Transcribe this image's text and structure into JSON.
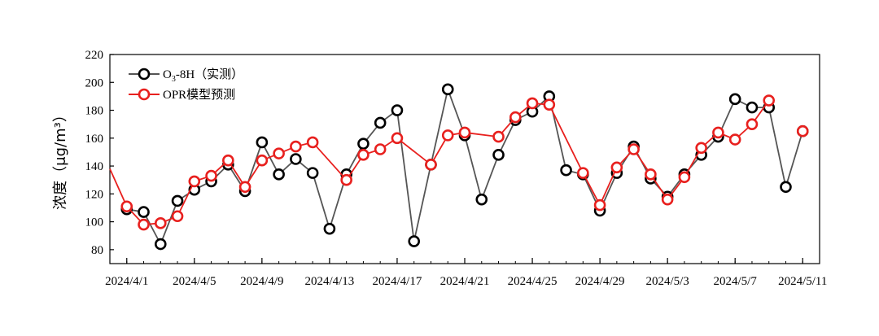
{
  "chart_data": {
    "type": "line",
    "ylabel": "浓度（μg/m³）",
    "xlabel": "",
    "ylim": [
      70,
      220
    ],
    "yticks": [
      80,
      100,
      120,
      140,
      160,
      180,
      200,
      220
    ],
    "xlim": [
      "2024-03-31",
      "2024-05-12"
    ],
    "xticks": [
      "2024-04-01",
      "2024-04-05",
      "2024-04-09",
      "2024-04-13",
      "2024-04-17",
      "2024-04-21",
      "2024-04-25",
      "2024-04-29",
      "2024-05-03",
      "2024-05-07",
      "2024-05-11"
    ],
    "xtick_labels": [
      "2024/4/1",
      "2024/4/5",
      "2024/4/9",
      "2024/4/13",
      "2024/4/17",
      "2024/4/21",
      "2024/4/25",
      "2024/4/29",
      "2024/5/3",
      "2024/5/7",
      "2024/5/11"
    ],
    "legend_position": "top-left",
    "series": [
      {
        "name": "O3-8H（实测）",
        "name_main": "O",
        "name_sub": "3",
        "name_rest": "-8H（实测）",
        "color": "#000000",
        "line_color": "#555555",
        "x": [
          "2024-04-01",
          "2024-04-02",
          "2024-04-03",
          "2024-04-04",
          "2024-04-05",
          "2024-04-06",
          "2024-04-07",
          "2024-04-08",
          "2024-04-09",
          "2024-04-10",
          "2024-04-11",
          "2024-04-12",
          "2024-04-13",
          "2024-04-14",
          "2024-04-15",
          "2024-04-16",
          "2024-04-17",
          "2024-04-18",
          "2024-04-19",
          "2024-04-20",
          "2024-04-21",
          "2024-04-22",
          "2024-04-23",
          "2024-04-24",
          "2024-04-25",
          "2024-04-26",
          "2024-04-27",
          "2024-04-28",
          "2024-04-29",
          "2024-04-30",
          "2024-05-01",
          "2024-05-02",
          "2024-05-03",
          "2024-05-04",
          "2024-05-05",
          "2024-05-06",
          "2024-05-07",
          "2024-05-08",
          "2024-05-09",
          "2024-05-10",
          "2024-05-11"
        ],
        "values": [
          109,
          107,
          84,
          115,
          123,
          129,
          141,
          122,
          157,
          134,
          145,
          135,
          95,
          134,
          156,
          171,
          180,
          86,
          141,
          195,
          162,
          116,
          148,
          173,
          179,
          190,
          137,
          134,
          108,
          135,
          154,
          131,
          118,
          134,
          148,
          161,
          188,
          182,
          182,
          125,
          165
        ]
      },
      {
        "name": "OPR模型预测",
        "color": "#e8201e",
        "line_color": "#e8201e",
        "x": [
          "2024-03-31",
          "2024-04-01",
          "2024-04-02",
          "2024-04-03",
          "2024-04-04",
          "2024-04-05",
          "2024-04-06",
          "2024-04-07",
          "2024-04-08",
          "2024-04-09",
          "2024-04-10",
          "2024-04-11",
          "2024-04-12",
          "2024-04-14",
          "2024-04-15",
          "2024-04-16",
          "2024-04-17",
          "2024-04-19",
          "2024-04-20",
          "2024-04-21",
          "2024-04-23",
          "2024-04-24",
          "2024-04-25",
          "2024-04-26",
          "2024-04-28",
          "2024-04-29",
          "2024-04-30",
          "2024-05-01",
          "2024-05-02",
          "2024-05-03",
          "2024-05-04",
          "2024-05-05",
          "2024-05-06",
          "2024-05-07",
          "2024-05-08",
          "2024-05-09",
          "2024-05-11"
        ],
        "values": [
          138,
          111,
          98,
          99,
          104,
          129,
          133,
          144,
          125,
          144,
          149,
          154,
          157,
          130,
          148,
          152,
          160,
          141,
          162,
          164,
          161,
          175,
          185,
          184,
          135,
          112,
          139,
          152,
          134,
          116,
          132,
          153,
          164,
          159,
          170,
          187,
          165
        ],
        "marker_only_from_index": 36
      }
    ]
  }
}
